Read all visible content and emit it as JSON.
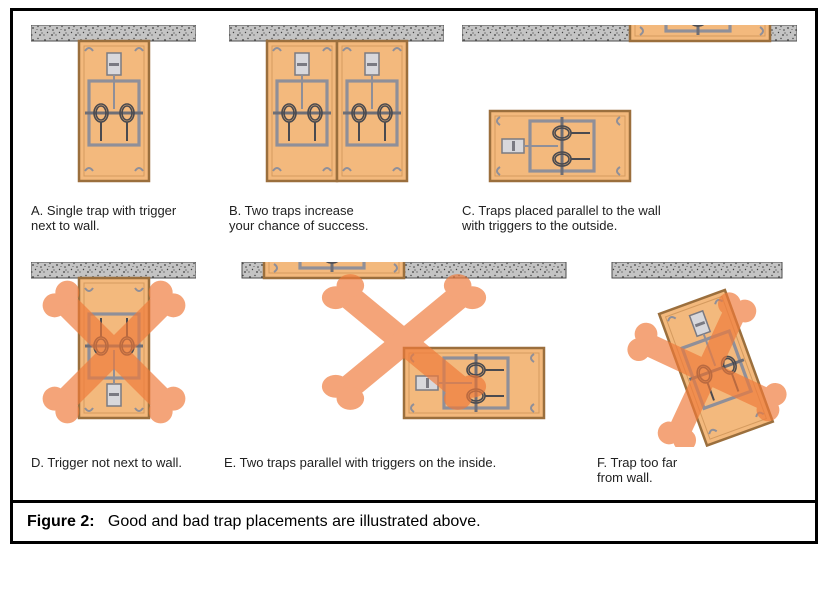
{
  "figure": {
    "wall_fill": "#b8b8b8",
    "wall_speckle": "#5a5a5a",
    "wood_fill": "#f3b97d",
    "wood_stroke": "#9b6f3d",
    "metal": "#8f8f99",
    "spring": "#4a4a4f",
    "x_fill": "#f07a3a",
    "x_opacity": 0.68,
    "panels": {
      "A": {
        "label": "A. Single trap with trigger\n     next to wall."
      },
      "B": {
        "label": "B. Two traps increase\n     your chance of success."
      },
      "C": {
        "label": "C. Traps placed parallel to the wall\n     with triggers to the outside."
      },
      "D": {
        "label": "D. Trigger not next to wall."
      },
      "E": {
        "label": "E. Two traps parallel with triggers on the inside."
      },
      "F": {
        "label": "F. Trap too far\n    from wall."
      }
    },
    "caption_label": "Figure 2:",
    "caption_text": "Good and bad trap placements are illustrated above."
  }
}
